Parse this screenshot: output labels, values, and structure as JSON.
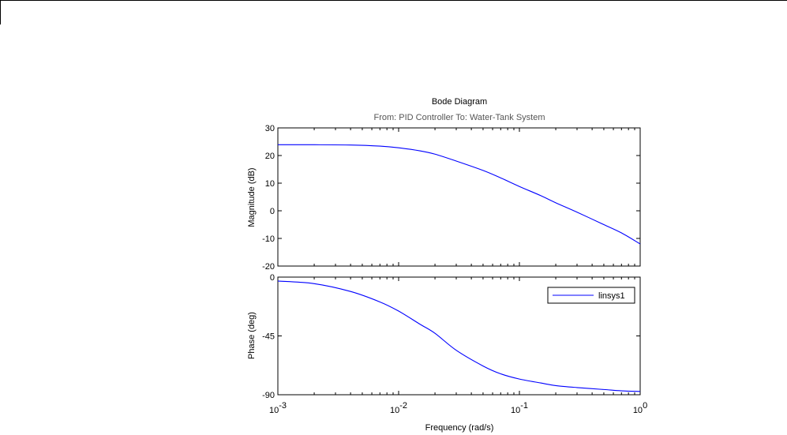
{
  "chart_data": {
    "type": "line",
    "title": "Bode Diagram",
    "subtitle": "From: PID Controller  To: Water-Tank System",
    "xlabel": "Frequency  (rad/s)",
    "xscale": "log",
    "xlim": [
      0.001,
      1
    ],
    "xticks": [
      {
        "base": "10",
        "exp": "-3"
      },
      {
        "base": "10",
        "exp": "-2"
      },
      {
        "base": "10",
        "exp": "-1"
      },
      {
        "base": "10",
        "exp": "0"
      }
    ],
    "grid": false,
    "legend": {
      "placement": "top-right",
      "panel": "phase",
      "entries": [
        "linsys1"
      ]
    },
    "series_color": "#0000ff",
    "panels": [
      {
        "name": "magnitude",
        "ylabel": "Magnitude (dB)",
        "ylim": [
          -20,
          30
        ],
        "yticks": [
          "30",
          "20",
          "10",
          "0",
          "-10",
          "-20"
        ],
        "yticks_values": [
          30,
          20,
          10,
          0,
          -10,
          -20
        ]
      },
      {
        "name": "phase",
        "ylabel": "Phase (deg)",
        "ylim": [
          -90,
          0
        ],
        "yticks": [
          "0",
          "-45",
          "-90"
        ],
        "yticks_values": [
          0,
          -45,
          -90
        ]
      }
    ],
    "series": [
      {
        "name": "linsys1",
        "x": [
          0.001,
          0.002,
          0.004,
          0.007,
          0.01,
          0.015,
          0.02,
          0.03,
          0.05,
          0.07,
          0.1,
          0.15,
          0.2,
          0.3,
          0.5,
          0.7,
          1
        ],
        "magnitude": [
          23.9,
          23.9,
          23.8,
          23.4,
          22.8,
          21.7,
          20.5,
          18.0,
          14.6,
          11.9,
          8.8,
          5.5,
          2.9,
          -0.5,
          -5.0,
          -8.0,
          -12.0
        ],
        "phase": [
          -3,
          -5,
          -11,
          -19,
          -26,
          -36,
          -43,
          -56,
          -68,
          -74,
          -78,
          -81,
          -83,
          -84.5,
          -86,
          -87,
          -87.5
        ]
      }
    ]
  }
}
